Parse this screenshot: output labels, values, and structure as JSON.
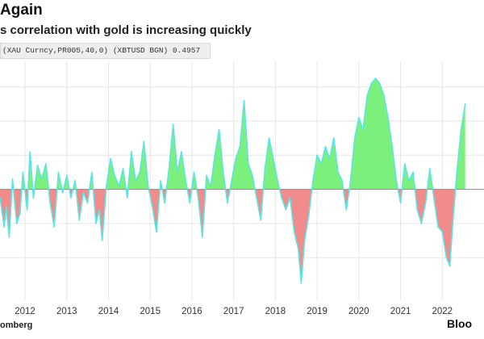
{
  "header": {
    "title": "Again",
    "subtitle": "s correlation with gold is increasing quickly"
  },
  "legend": {
    "series_label": "(XAU Curncy,PR005,40,0) (XBTUSD BGN) 0.4957"
  },
  "footer": {
    "source": "omberg",
    "brand": "Bloo"
  },
  "colors": {
    "positive_fill": "#7cf07c",
    "negative_fill": "#f28b8b",
    "line": "#5fe3e3",
    "gridline": "#e6e6e6",
    "zero_line": "#8a8a8a"
  },
  "chart_data": {
    "type": "area",
    "title": "Again",
    "subtitle": "s correlation with gold is increasing quickly",
    "series_name": "(XAU Curncy,PR005,40,0) (XBTUSD BGN) 0.4957",
    "xlabel": "",
    "ylabel": "",
    "xlim": [
      2011.4,
      2023.0
    ],
    "ylim": [
      -0.65,
      0.75
    ],
    "grid": true,
    "x_ticks": [
      {
        "value": 2012,
        "label": "2012"
      },
      {
        "value": 2013,
        "label": "2013"
      },
      {
        "value": 2014,
        "label": "2014"
      },
      {
        "value": 2015,
        "label": "2015"
      },
      {
        "value": 2016,
        "label": "2016"
      },
      {
        "value": 2017,
        "label": "2017"
      },
      {
        "value": 2018,
        "label": "2018"
      },
      {
        "value": 2019,
        "label": "2019"
      },
      {
        "value": 2020,
        "label": "2020"
      },
      {
        "value": 2021,
        "label": "2021"
      },
      {
        "value": 2022,
        "label": "2022"
      }
    ],
    "y_gridlines": [
      -0.4,
      -0.2,
      0,
      0.2,
      0.4,
      0.6
    ],
    "points": [
      [
        2011.4,
        -0.05
      ],
      [
        2011.5,
        -0.22
      ],
      [
        2011.55,
        -0.1
      ],
      [
        2011.62,
        -0.28
      ],
      [
        2011.7,
        0.06
      ],
      [
        2011.8,
        -0.2
      ],
      [
        2011.88,
        -0.14
      ],
      [
        2011.95,
        0.1
      ],
      [
        2012.05,
        -0.12
      ],
      [
        2012.12,
        0.22
      ],
      [
        2012.2,
        -0.05
      ],
      [
        2012.3,
        0.14
      ],
      [
        2012.4,
        0.06
      ],
      [
        2012.5,
        0.15
      ],
      [
        2012.6,
        -0.08
      ],
      [
        2012.7,
        -0.22
      ],
      [
        2012.8,
        0.1
      ],
      [
        2012.9,
        -0.02
      ],
      [
        2013.0,
        0.08
      ],
      [
        2013.1,
        -0.05
      ],
      [
        2013.2,
        0.05
      ],
      [
        2013.3,
        -0.18
      ],
      [
        2013.4,
        -0.02
      ],
      [
        2013.5,
        -0.08
      ],
      [
        2013.6,
        0.1
      ],
      [
        2013.7,
        -0.2
      ],
      [
        2013.78,
        -0.12
      ],
      [
        2013.85,
        -0.3
      ],
      [
        2013.95,
        0.02
      ],
      [
        2014.05,
        0.18
      ],
      [
        2014.15,
        0.08
      ],
      [
        2014.25,
        0.02
      ],
      [
        2014.35,
        0.12
      ],
      [
        2014.45,
        -0.05
      ],
      [
        2014.55,
        0.22
      ],
      [
        2014.65,
        0.05
      ],
      [
        2014.75,
        0.1
      ],
      [
        2014.85,
        0.28
      ],
      [
        2014.95,
        0.02
      ],
      [
        2015.05,
        -0.1
      ],
      [
        2015.15,
        -0.25
      ],
      [
        2015.25,
        0.05
      ],
      [
        2015.35,
        -0.08
      ],
      [
        2015.45,
        0.12
      ],
      [
        2015.55,
        0.38
      ],
      [
        2015.65,
        0.1
      ],
      [
        2015.75,
        0.22
      ],
      [
        2015.85,
        0.05
      ],
      [
        2015.95,
        -0.08
      ],
      [
        2016.05,
        0.1
      ],
      [
        2016.15,
        -0.05
      ],
      [
        2016.25,
        -0.28
      ],
      [
        2016.35,
        0.08
      ],
      [
        2016.45,
        0.02
      ],
      [
        2016.55,
        0.2
      ],
      [
        2016.65,
        0.35
      ],
      [
        2016.75,
        0.1
      ],
      [
        2016.85,
        -0.08
      ],
      [
        2016.95,
        0.05
      ],
      [
        2017.05,
        0.18
      ],
      [
        2017.15,
        0.25
      ],
      [
        2017.25,
        0.52
      ],
      [
        2017.35,
        0.15
      ],
      [
        2017.45,
        0.08
      ],
      [
        2017.55,
        -0.05
      ],
      [
        2017.65,
        -0.18
      ],
      [
        2017.75,
        0.12
      ],
      [
        2017.85,
        0.3
      ],
      [
        2017.95,
        0.18
      ],
      [
        2018.05,
        0.05
      ],
      [
        2018.15,
        -0.05
      ],
      [
        2018.25,
        -0.12
      ],
      [
        2018.35,
        -0.05
      ],
      [
        2018.45,
        -0.25
      ],
      [
        2018.55,
        -0.35
      ],
      [
        2018.62,
        -0.55
      ],
      [
        2018.7,
        -0.3
      ],
      [
        2018.8,
        -0.15
      ],
      [
        2018.9,
        0.05
      ],
      [
        2019.0,
        0.2
      ],
      [
        2019.1,
        0.15
      ],
      [
        2019.2,
        0.25
      ],
      [
        2019.3,
        0.18
      ],
      [
        2019.4,
        0.3
      ],
      [
        2019.5,
        0.1
      ],
      [
        2019.6,
        0.05
      ],
      [
        2019.7,
        -0.12
      ],
      [
        2019.8,
        0.05
      ],
      [
        2019.9,
        0.3
      ],
      [
        2020.0,
        0.42
      ],
      [
        2020.1,
        0.35
      ],
      [
        2020.2,
        0.55
      ],
      [
        2020.3,
        0.62
      ],
      [
        2020.4,
        0.65
      ],
      [
        2020.5,
        0.62
      ],
      [
        2020.6,
        0.55
      ],
      [
        2020.7,
        0.42
      ],
      [
        2020.8,
        0.25
      ],
      [
        2020.9,
        0.05
      ],
      [
        2021.0,
        -0.08
      ],
      [
        2021.1,
        0.15
      ],
      [
        2021.2,
        0.05
      ],
      [
        2021.3,
        0.1
      ],
      [
        2021.4,
        -0.12
      ],
      [
        2021.5,
        -0.2
      ],
      [
        2021.6,
        -0.08
      ],
      [
        2021.7,
        0.12
      ],
      [
        2021.8,
        -0.05
      ],
      [
        2021.9,
        -0.22
      ],
      [
        2022.0,
        -0.25
      ],
      [
        2022.1,
        -0.4
      ],
      [
        2022.18,
        -0.45
      ],
      [
        2022.25,
        -0.2
      ],
      [
        2022.35,
        0.1
      ],
      [
        2022.45,
        0.35
      ],
      [
        2022.55,
        0.5
      ]
    ]
  }
}
